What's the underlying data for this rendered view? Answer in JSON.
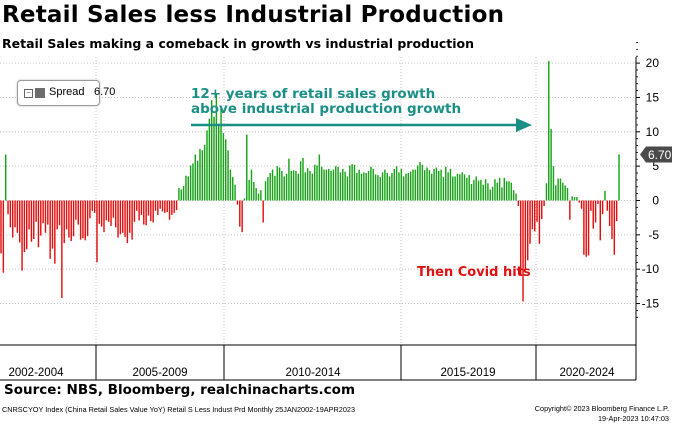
{
  "title": "Retail Sales less Industrial Production",
  "subtitle": "Retail Sales making a comeback in growth vs industrial production",
  "source": "Source: NBS, Bloomberg, realchinacharts.com",
  "footer_left": "CNRSCYOY Index (China Retail Sales Value YoY) Retail S Less Indust Prd  Monthly 25JAN2002-19APR2023",
  "footer_right_line1": "Copyright© 2023 Bloomberg Finance L.P.",
  "footer_right_line2": "19-Apr-2023 10:47:03",
  "legend": {
    "toggle": "−",
    "label": "Spread",
    "value": "6.70"
  },
  "last_value_label": "6.70",
  "annotations": {
    "arrow_line1": "12+ years of retail sales growth",
    "arrow_line2": "above industrial production growth",
    "covid": "Then Covid hits"
  },
  "colors": {
    "positive": "#19a319",
    "negative": "#e01010",
    "arrow": "#1b8f86",
    "covid_text": "#e01010",
    "grid": "#c6c6c6"
  },
  "chart_data": {
    "type": "bar",
    "title": "Retail Sales less Industrial Production",
    "series": [
      {
        "name": "Spread",
        "values": [
          -7.7,
          -10.5,
          6.7,
          -2.0,
          -3.9,
          -5.4,
          -3.9,
          -4.7,
          -6.1,
          -10.2,
          -7.5,
          -7.1,
          -4.2,
          -6.0,
          -5.6,
          -3.1,
          -6.8,
          -5.1,
          -3.3,
          -4.7,
          -3.5,
          -8.5,
          -7.0,
          -9.2,
          -4.2,
          -3.6,
          -14.2,
          -6.2,
          -4.2,
          -5.4,
          -5.9,
          -5.2,
          -2.8,
          -3.5,
          -5.7,
          -5.5,
          -5.8,
          -5.2,
          -2.6,
          -1.5,
          -1.8,
          -9.0,
          -3.4,
          -3.8,
          -4.6,
          -2.9,
          -3.1,
          -3.7,
          -2.5,
          -3.9,
          -5.4,
          -4.9,
          -4.7,
          -5.3,
          -6.2,
          -4.7,
          -5.7,
          -3.1,
          -1.5,
          -2.9,
          -2.1,
          -3.5,
          -3.6,
          -2.2,
          -3.0,
          -3.2,
          -1.5,
          -2.1,
          -1.2,
          -1.6,
          -1.8,
          -1.7,
          -2.8,
          -2.1,
          -1.8,
          -1.4,
          1.8,
          1.6,
          2.1,
          3.6,
          3.5,
          5.1,
          5.4,
          6.7,
          5.8,
          7.5,
          7.3,
          8.1,
          10.2,
          11.9,
          14.6,
          12.2,
          15.5,
          11.2,
          13.4,
          9.8,
          8.9,
          7.3,
          4.5,
          3.4,
          2.3,
          -0.6,
          -3.8,
          -4.6,
          0.3,
          9.6,
          3.0,
          4.5,
          2.7,
          1.8,
          1.0,
          1.5,
          -3.2,
          2.8,
          3.4,
          4.0,
          4.5,
          3.6,
          5.0,
          4.8,
          4.3,
          3.5,
          3.9,
          6.1,
          4.3,
          4.4,
          4.3,
          3.9,
          5.7,
          6.2,
          4.1,
          4.7,
          4.3,
          3.9,
          5.2,
          5.1,
          6.7,
          4.9,
          4.5,
          4.5,
          4.6,
          4.3,
          4.5,
          5.0,
          4.9,
          4.1,
          4.6,
          4.2,
          3.5,
          5.1,
          5.3,
          5.2,
          4.0,
          4.5,
          3.9,
          4.1,
          4.0,
          4.3,
          4.9,
          4.6,
          3.8,
          3.7,
          3.4,
          4.1,
          4.5,
          4.0,
          3.5,
          4.0,
          4.6,
          5.0,
          4.1,
          4.6,
          3.5,
          3.9,
          4.0,
          4.2,
          4.5,
          4.5,
          5.1,
          5.6,
          5.2,
          4.4,
          4.8,
          4.4,
          3.9,
          4.6,
          4.8,
          4.3,
          4.5,
          3.4,
          4.9,
          4.1,
          4.6,
          3.5,
          3.5,
          3.9,
          3.8,
          4.1,
          3.8,
          3.3,
          3.7,
          2.4,
          3.0,
          3.5,
          2.9,
          3.0,
          2.3,
          3.1,
          2.5,
          1.6,
          2.0,
          3.1,
          2.6,
          3.3,
          1.9,
          3.3,
          2.8,
          2.8,
          2.6,
          1.5,
          1.0,
          -0.8,
          -11.0,
          -14.7,
          -10.1,
          -8.7,
          -6.3,
          -4.2,
          -4.5,
          -3.1,
          -6.3,
          -2.7,
          -0.8,
          2.5,
          20.3,
          10.4,
          5.0,
          2.2,
          3.2,
          3.2,
          2.6,
          2.2,
          1.8,
          -2.8,
          0.6,
          0.5,
          0.5,
          -0.3,
          -1.2,
          -7.9,
          -8.2,
          -8.0,
          -1.5,
          -4.1,
          -3.2,
          -0.5,
          -5.8,
          -2.0,
          1.4,
          -1.5,
          -3.7,
          -5.6,
          -7.9,
          -3.0,
          6.7
        ]
      }
    ],
    "ylim": [
      -18,
      23.5
    ],
    "y_ticks": [
      20,
      15,
      10,
      5,
      0,
      -5,
      -10,
      -15
    ],
    "y_tick_labels": [
      "20",
      "15",
      "10",
      "5",
      "0",
      "-5",
      "-10",
      "-15"
    ],
    "x_period_labels": [
      "2002-2004",
      "2005-2009",
      "2010-2014",
      "2015-2019",
      "2020-2024"
    ],
    "grid": true
  }
}
